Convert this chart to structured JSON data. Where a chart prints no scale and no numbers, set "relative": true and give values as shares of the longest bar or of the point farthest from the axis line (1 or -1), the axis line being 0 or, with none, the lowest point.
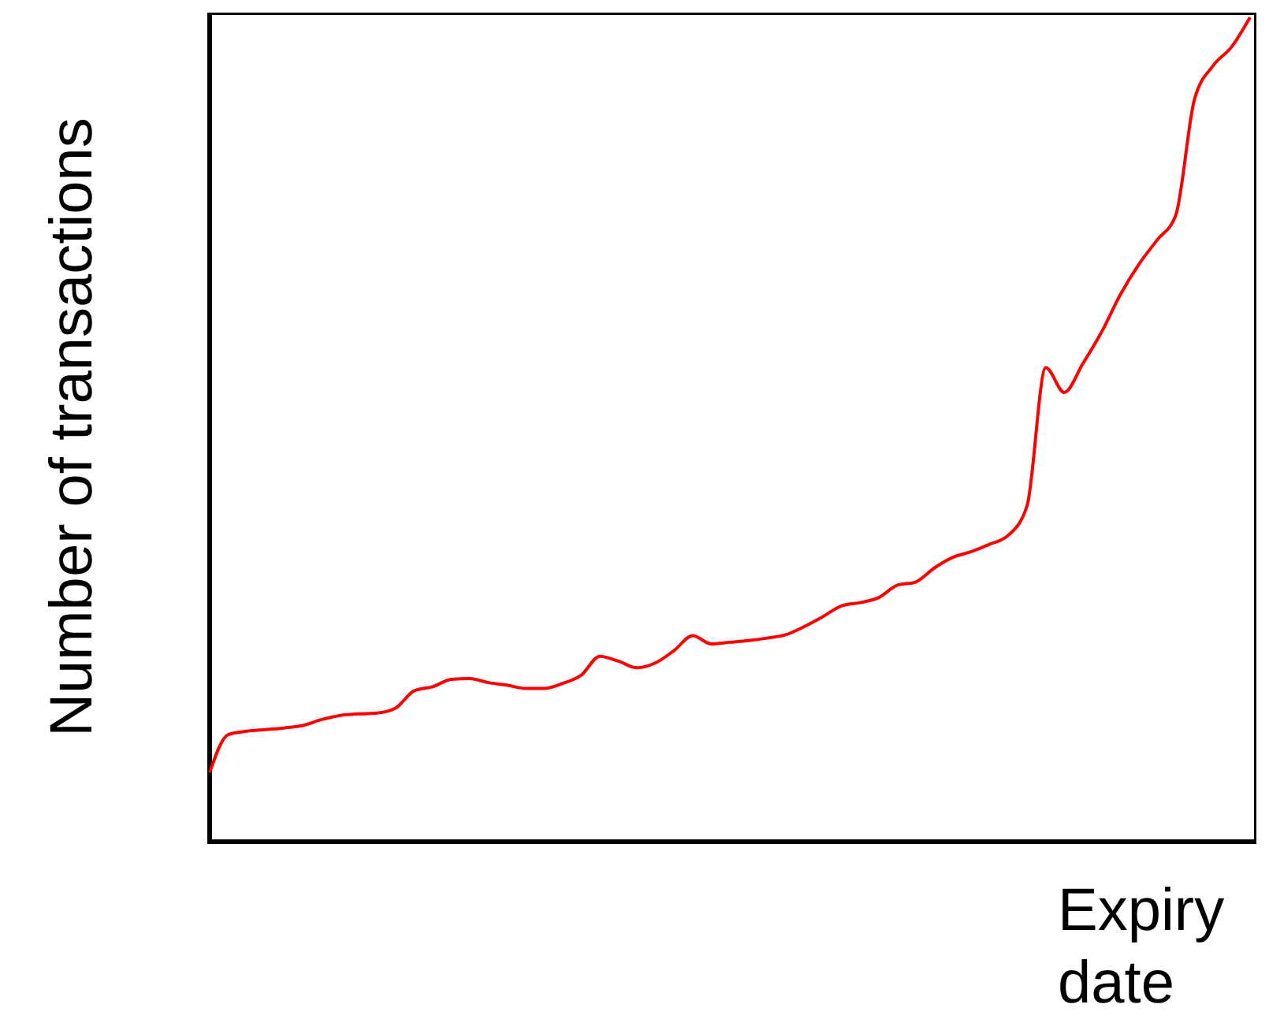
{
  "chart_data": {
    "type": "line",
    "xlabel": "Expiry date",
    "ylabel": "Number of transactions",
    "relative": true,
    "marker": "none",
    "line_style": "solid",
    "categories": [
      null,
      null,
      null,
      null,
      null,
      null,
      null,
      null,
      null,
      null,
      null,
      null,
      null,
      null,
      null,
      null,
      null,
      null,
      null,
      null,
      null,
      null,
      null,
      null,
      null,
      null,
      null,
      null,
      null,
      null,
      null,
      null,
      null,
      null,
      null,
      null,
      null,
      null,
      null,
      null,
      null,
      null,
      null,
      null,
      null,
      null,
      null,
      null,
      null,
      null,
      null,
      null,
      null,
      null,
      null,
      null,
      null
    ],
    "series": [
      {
        "color": "#ff0000",
        "values": [
          0.084,
          0.13,
          0.134,
          0.136,
          0.138,
          0.141,
          0.148,
          0.153,
          0.155,
          0.156,
          0.162,
          0.183,
          0.188,
          0.197,
          0.198,
          0.193,
          0.19,
          0.186,
          0.186,
          0.192,
          0.202,
          0.225,
          0.219,
          0.211,
          0.217,
          0.232,
          0.25,
          0.24,
          0.242,
          0.244,
          0.247,
          0.251,
          0.261,
          0.273,
          0.286,
          0.29,
          0.296,
          0.311,
          0.315,
          0.332,
          0.345,
          0.352,
          0.361,
          0.372,
          0.408,
          0.575,
          0.545,
          0.58,
          0.618,
          0.663,
          0.7,
          0.73,
          0.76,
          0.9,
          0.941,
          0.964,
          1.0
        ]
      }
    ]
  }
}
